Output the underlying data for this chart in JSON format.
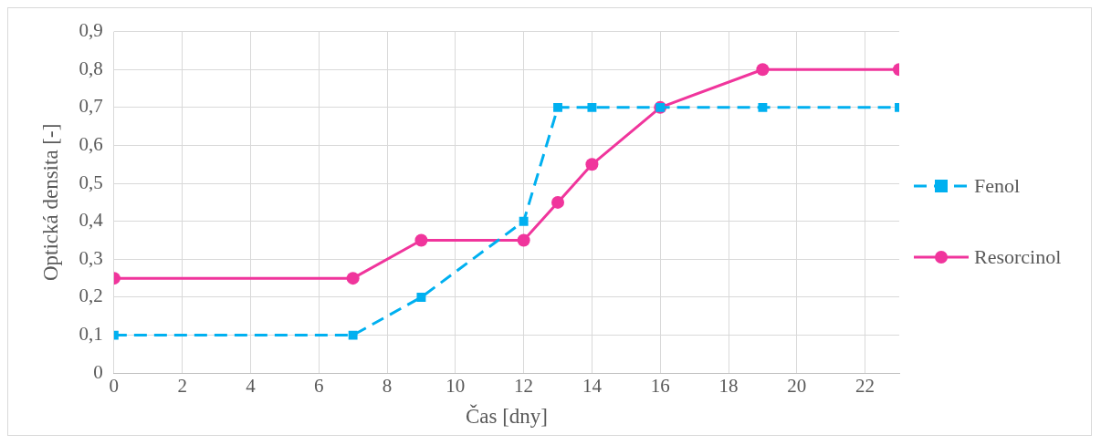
{
  "chart_data": {
    "type": "line",
    "xlabel": "Čas [dny]",
    "ylabel": "Optická densita [-]",
    "series": [
      {
        "name": "Fenol",
        "color": "#00b0f0",
        "marker": "square",
        "line_style": "dashed",
        "x": [
          0,
          7,
          9,
          12,
          13,
          14,
          16,
          19,
          23
        ],
        "values": [
          0.1,
          0.1,
          0.2,
          0.4,
          0.7,
          0.7,
          0.7,
          0.7,
          0.7
        ]
      },
      {
        "name": "Resorcinol",
        "color": "#f0359c",
        "marker": "circle",
        "line_style": "solid",
        "x": [
          0,
          7,
          9,
          12,
          13,
          14,
          16,
          19,
          23
        ],
        "values": [
          0.25,
          0.25,
          0.35,
          0.35,
          0.45,
          0.55,
          0.7,
          0.8,
          0.8
        ]
      }
    ],
    "xlim": [
      0,
      23
    ],
    "xticks": [
      0,
      2,
      4,
      6,
      8,
      10,
      12,
      14,
      16,
      18,
      20,
      22
    ],
    "ylim": [
      0,
      0.9
    ],
    "yticks": [
      0,
      {
        "value": 0.1,
        "label": "0,1"
      },
      {
        "value": 0.2,
        "label": "0,2"
      },
      {
        "value": 0.3,
        "label": "0,3"
      },
      {
        "value": 0.4,
        "label": "0,4"
      },
      {
        "value": 0.5,
        "label": "0,5"
      },
      {
        "value": 0.6,
        "label": "0,6"
      },
      {
        "value": 0.7,
        "label": "0,7"
      },
      {
        "value": 0.8,
        "label": "0,8"
      },
      {
        "value": 0.9,
        "label": "0,9"
      }
    ],
    "grid": true,
    "legend": "right"
  }
}
